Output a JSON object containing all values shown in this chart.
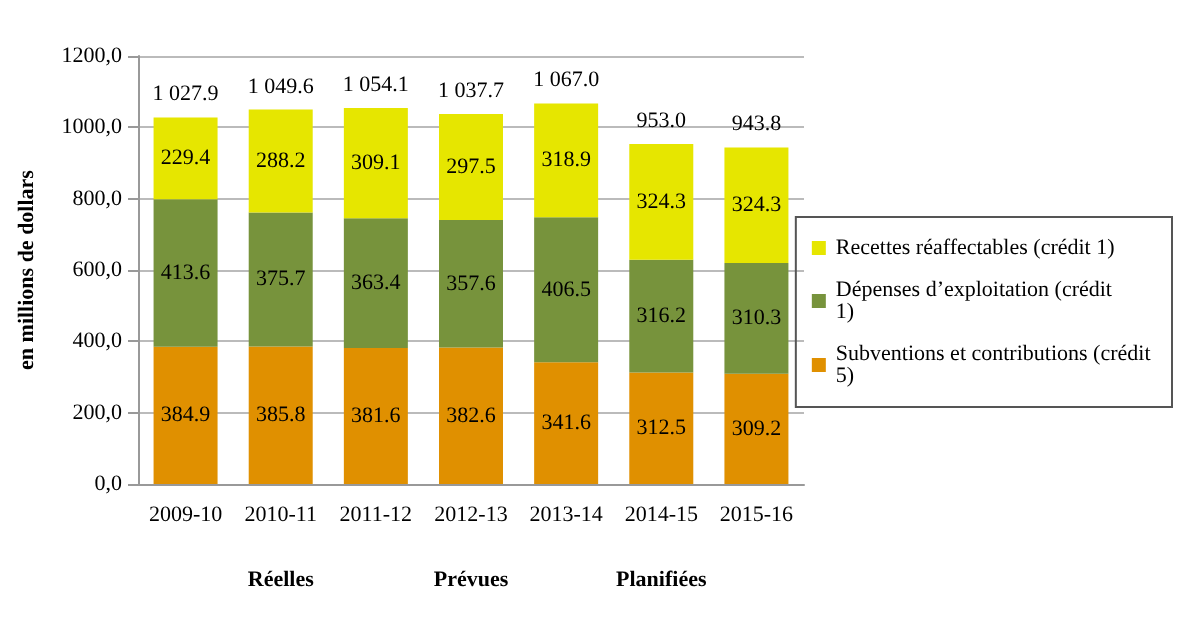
{
  "chart_data": {
    "type": "bar",
    "stacked": true,
    "ylabel": "en millions de dollars",
    "categories": [
      "2009-10",
      "2010-11",
      "2011-12",
      "2012-13",
      "2013-14",
      "2014-15",
      "2015-16"
    ],
    "series": [
      {
        "name": "Subventions et contributions (crédit 5)",
        "color": "#e09000",
        "values": [
          384.9,
          385.8,
          381.6,
          382.6,
          341.6,
          312.5,
          309.2
        ]
      },
      {
        "name": "Dépenses d’exploitation (crédit 1)",
        "color": "#77933c",
        "values": [
          413.6,
          375.7,
          363.4,
          357.6,
          406.5,
          316.2,
          310.3
        ]
      },
      {
        "name": "Recettes réaffectables (crédit 1)",
        "color": "#e6e600",
        "values": [
          229.4,
          288.2,
          309.1,
          297.5,
          318.9,
          324.3,
          324.3
        ]
      }
    ],
    "totals": [
      "1 027.9",
      "1 049.6",
      "1 054.1",
      "1 037.7",
      "1 067.0",
      "953.0",
      "943.8"
    ],
    "data_labels": true,
    "ylim": [
      0,
      1200
    ],
    "yticks": [
      {
        "value": 0,
        "label": "0,0"
      },
      {
        "value": 200,
        "label": "200,0"
      },
      {
        "value": 400,
        "label": "400,0"
      },
      {
        "value": 600,
        "label": "600,0"
      },
      {
        "value": 800,
        "label": "800,0"
      },
      {
        "value": 1000,
        "label": "1000,0"
      },
      {
        "value": 1200,
        "label": "1200,0"
      }
    ],
    "grid": "y",
    "legend": "right",
    "annotations": [
      "Réelles",
      "Prévues",
      "Planifiées"
    ]
  }
}
